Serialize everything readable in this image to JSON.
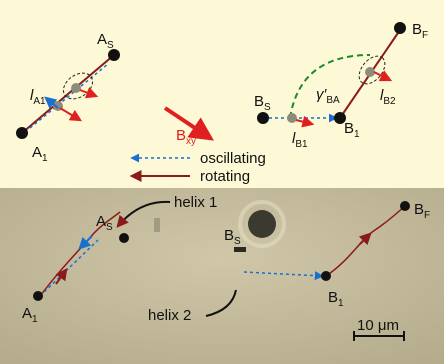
{
  "top_panel": {
    "labels": [
      {
        "main": "A",
        "sub": "S"
      },
      {
        "main": "A",
        "sub": "1"
      },
      {
        "main": "l",
        "sub": "A1"
      },
      {
        "main": "B",
        "sub": "xy"
      },
      {
        "main": "B",
        "sub": "S"
      },
      {
        "main": "B",
        "sub": "1"
      },
      {
        "main": "B",
        "sub": "F"
      },
      {
        "main": "l",
        "sub": "B1"
      },
      {
        "main": "l",
        "sub": "B2"
      },
      {
        "main": "γ′",
        "sub": "BA"
      }
    ],
    "legend": [
      "oscillating",
      "rotating"
    ]
  },
  "bottom_panel": {
    "labels": [
      {
        "main": "A",
        "sub": "S"
      },
      {
        "main": "A",
        "sub": "1"
      },
      {
        "main": "B",
        "sub": "S"
      },
      {
        "main": "B",
        "sub": "1"
      },
      {
        "main": "B",
        "sub": "F"
      }
    ],
    "annotations": [
      "helix 1",
      "helix 2"
    ],
    "scale_bar": "10 μm"
  }
}
